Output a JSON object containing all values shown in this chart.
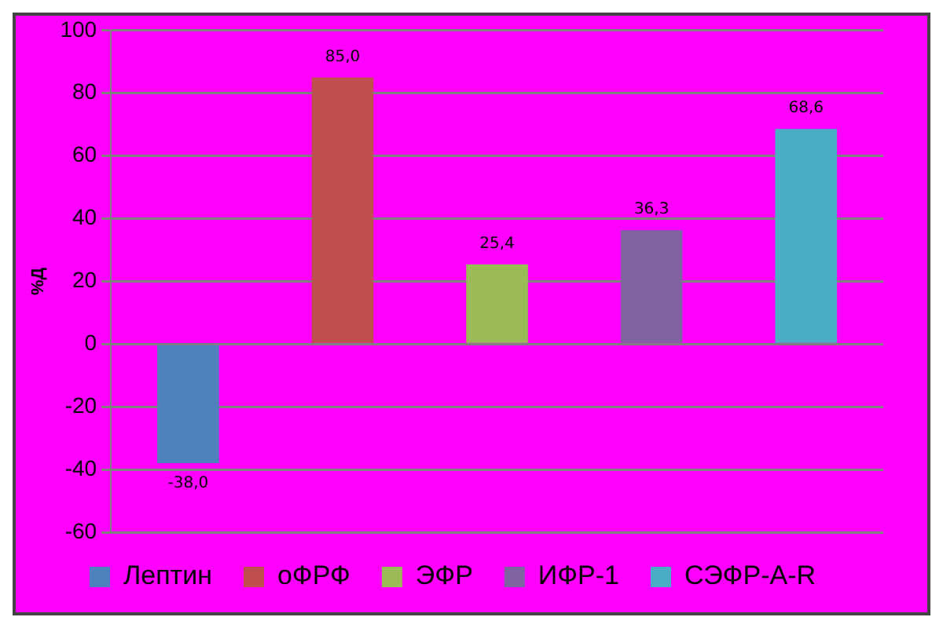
{
  "chart_data": {
    "type": "bar",
    "ylabel": "%Д",
    "categories": [
      null
    ],
    "series": [
      {
        "name": "Лептин",
        "color": "#4f81bd",
        "values": [
          -38
        ],
        "value_labels": [
          "-38,0"
        ]
      },
      {
        "name": "оФРФ",
        "color": "#c0504d",
        "values": [
          85
        ],
        "value_labels": [
          "85,0"
        ]
      },
      {
        "name": "ЭФР",
        "color": "#9bbb59",
        "values": [
          25.4
        ],
        "value_labels": [
          "25,4"
        ]
      },
      {
        "name": "ИФР-1",
        "color": "#8064a2",
        "values": [
          36.3
        ],
        "value_labels": [
          "36,3"
        ]
      },
      {
        "name": "СЭФР-A-R",
        "color": "#4bacc6",
        "values": [
          68.6
        ],
        "value_labels": [
          "68,6"
        ]
      }
    ],
    "ylim": [
      -60,
      100
    ],
    "yticks": [
      -60,
      -40,
      -20,
      0,
      20,
      40,
      60,
      80,
      100
    ],
    "grid": "y",
    "legend": "bottom",
    "tick_labels": "y"
  }
}
